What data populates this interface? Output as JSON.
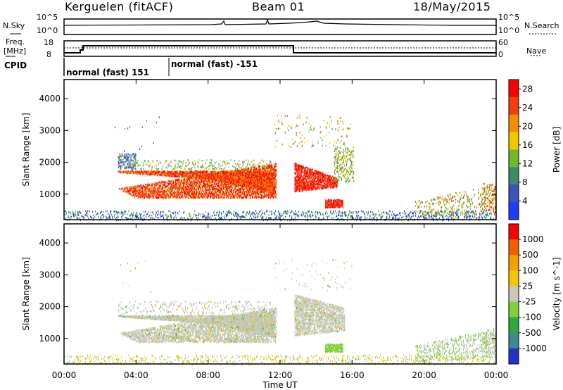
{
  "header": {
    "station": "Kerguelen (fitACF)",
    "beam": "Beam 01",
    "date": "18/May/2015"
  },
  "panels": {
    "nsky_label": "N.Sky",
    "nsky_ticks": [
      "10^5",
      "10^0"
    ],
    "nsearch_label": "N.Search",
    "nsearch_ticks": [
      "10^5",
      "10^0"
    ],
    "freq_label_line1": "Freq.",
    "freq_label_line2": "[MHz]",
    "freq_ticks": [
      "18",
      "8"
    ],
    "nave_label": "Nave",
    "nave_ticks": [
      "60",
      "0"
    ],
    "cpid_label": "CPID",
    "cpid_segments": [
      {
        "text": "normal (fast) 151"
      },
      {
        "text": "normal (fast) -151"
      }
    ]
  },
  "chart_data": [
    {
      "type": "heatmap",
      "title": "",
      "xlabel": "",
      "ylabel": "Slant Range [km]",
      "y_ticks": [
        "1000",
        "2000",
        "3000",
        "4000"
      ],
      "ylim": [
        200,
        4600
      ],
      "colorbar": {
        "label": "Power [dB]",
        "ticks": [
          "4",
          "8",
          "12",
          "16",
          "20",
          "24",
          "28"
        ],
        "range": [
          0,
          30
        ],
        "colors": [
          "#1f3cff",
          "#3a55b8",
          "#3c8a6a",
          "#6fb830",
          "#f0c800",
          "#f09000",
          "#f04010",
          "#ff0000"
        ]
      }
    },
    {
      "type": "heatmap",
      "title": "",
      "xlabel": "Time UT",
      "ylabel": "Slant Range [km]",
      "x_ticks": [
        "00:00",
        "04:00",
        "08:00",
        "12:00",
        "16:00",
        "20:00",
        "00:00"
      ],
      "xlim_hours": [
        0,
        24
      ],
      "y_ticks": [
        "1000",
        "2000",
        "3000",
        "4000"
      ],
      "ylim": [
        200,
        4600
      ],
      "colorbar": {
        "label": "Velocity [m s^-1]",
        "ticks": [
          "1000",
          "500",
          "100",
          "25",
          "-25",
          "-100",
          "-500",
          "-1000"
        ],
        "colors": [
          "#2233cc",
          "#3f8a8a",
          "#2fa83c",
          "#7fd03a",
          "#c8c8c0",
          "#f0c800",
          "#f0a000",
          "#f06000",
          "#ff0000"
        ]
      }
    }
  ]
}
